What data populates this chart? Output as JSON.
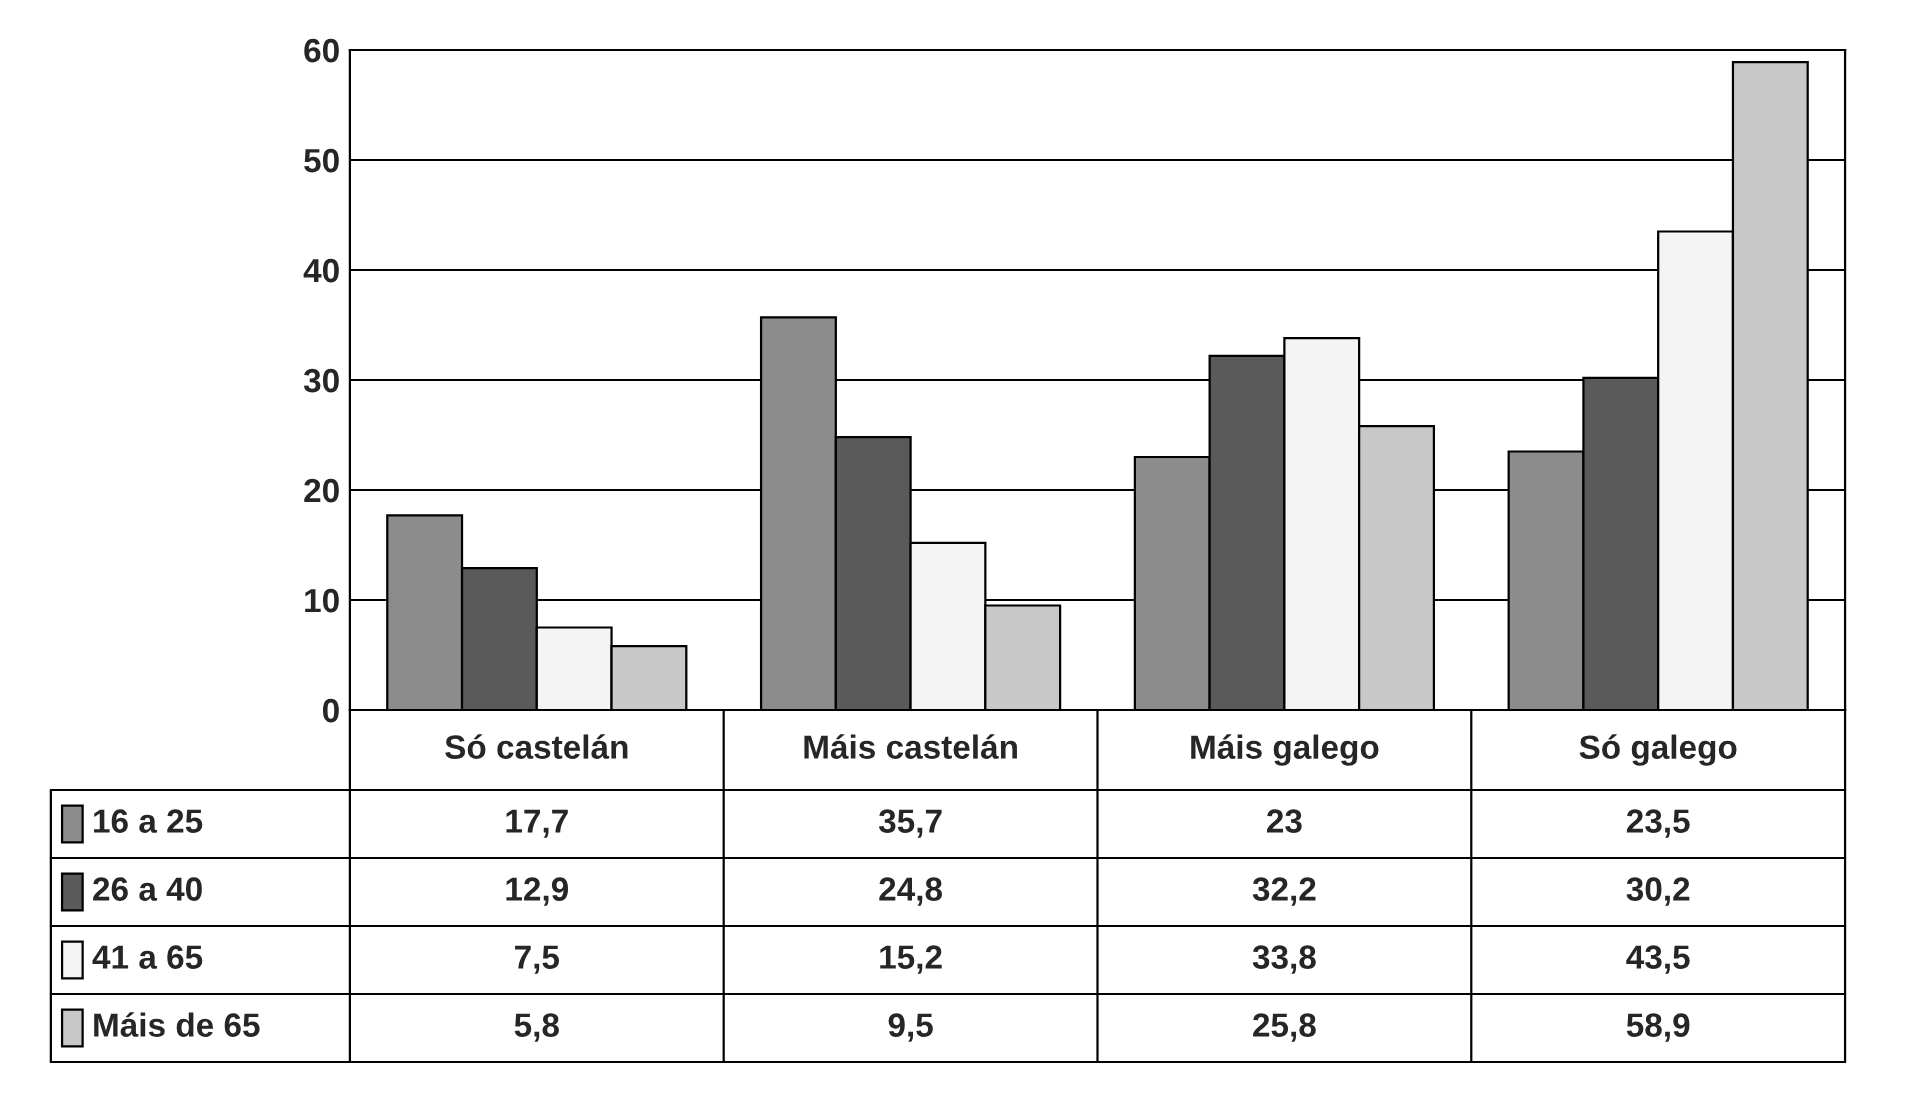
{
  "chart_data": {
    "type": "bar",
    "categories": [
      "Só castelán",
      "Máis castelán",
      "Máis galego",
      "Só galego"
    ],
    "series": [
      {
        "name": "16 a 25",
        "color": "#8c8c8c",
        "values": [
          17.7,
          35.7,
          23,
          23.5
        ],
        "value_labels": [
          "17,7",
          "35,7",
          "23",
          "23,5"
        ]
      },
      {
        "name": "26 a 40",
        "color": "#5a5a5a",
        "values": [
          12.9,
          24.8,
          32.2,
          30.2
        ],
        "value_labels": [
          "12,9",
          "24,8",
          "32,2",
          "30,2"
        ]
      },
      {
        "name": "41 a 65",
        "color": "#f4f4f4",
        "values": [
          7.5,
          15.2,
          33.8,
          43.5
        ],
        "value_labels": [
          "7,5",
          "15,2",
          "33,8",
          "43,5"
        ]
      },
      {
        "name": "Máis de 65",
        "color": "#c8c8c8",
        "values": [
          5.8,
          9.5,
          25.8,
          58.9
        ],
        "value_labels": [
          "5,8",
          "9,5",
          "25,8",
          "58,9"
        ]
      }
    ],
    "ylim": [
      0,
      60
    ],
    "yticks": [
      0,
      10,
      20,
      30,
      40,
      50,
      60
    ],
    "grid": "y",
    "legend": "bottom left"
  }
}
